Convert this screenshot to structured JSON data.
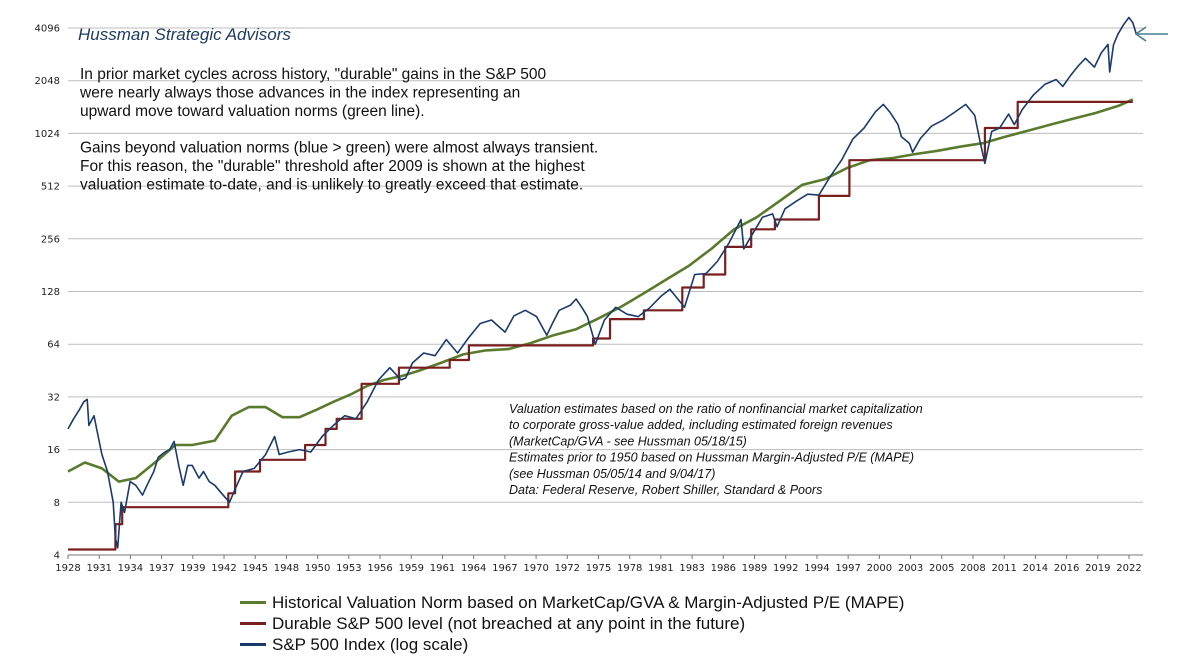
{
  "chart_data": {
    "type": "line",
    "title": "Hussman Strategic Advisors",
    "annotation_paragraphs": [
      [
        "In prior market cycles across history, \"durable\" gains in the S&P 500",
        "were nearly always those advances in the index representing an",
        "upward move toward valuation norms (green line)."
      ],
      [
        "Gains beyond valuation norms (blue > green) were almost always transient.",
        "For this reason, the \"durable\" threshold after 2009 is shown at the highest",
        "valuation estimate to-date, and is unlikely to greatly exceed that estimate."
      ]
    ],
    "source_note": [
      "Valuation estimates based on the ratio of nonfinancial  market capitalization",
      "to corporate gross-value added, including estimated foreign revenues",
      "(MarketCap/GVA - see Hussman 05/18/15)",
      "Estimates prior to 1950 based on Hussman Margin-Adjusted P/E (MAPE)",
      "(see Hussman 05/05/14 and 9/04/17)",
      "Data: Federal Reserve, Robert Shiller, Standard & Poors"
    ],
    "y_scale": "log2",
    "ylim": [
      4,
      4096
    ],
    "y_ticks": [
      4,
      8,
      16,
      32,
      64,
      128,
      256,
      512,
      1024,
      2048,
      4096
    ],
    "xlim": [
      1928,
      2023.2
    ],
    "x_tick_labels": [
      "1928",
      "1931",
      "1934",
      "1937",
      "1939",
      "1942",
      "1945",
      "1948",
      "1950",
      "1953",
      "1956",
      "1959",
      "1961",
      "1964",
      "1967",
      "1970",
      "1972",
      "1975",
      "1978",
      "1981",
      "1983",
      "1986",
      "1989",
      "1992",
      "1994",
      "1997",
      "2000",
      "2003",
      "2005",
      "2008",
      "2011",
      "2014",
      "2016",
      "2019",
      "2022"
    ],
    "grid": "horizontal",
    "legend_position": "bottom",
    "series": [
      {
        "name": "Historical Valuation Norm based on MarketCap/GVA & Margin-Adjusted P/E (MAPE)",
        "color": "#5a7a2e",
        "points": [
          [
            1928,
            12
          ],
          [
            1929.5,
            13.5
          ],
          [
            1931,
            12.5
          ],
          [
            1932.5,
            10.5
          ],
          [
            1934,
            11
          ],
          [
            1936,
            14
          ],
          [
            1937.5,
            17
          ],
          [
            1939,
            17
          ],
          [
            1941,
            18
          ],
          [
            1942.5,
            25
          ],
          [
            1944,
            28
          ],
          [
            1945.5,
            28
          ],
          [
            1947,
            24.5
          ],
          [
            1948.5,
            24.5
          ],
          [
            1950,
            27
          ],
          [
            1951.5,
            30
          ],
          [
            1953,
            33
          ],
          [
            1954.5,
            37
          ],
          [
            1956,
            40
          ],
          [
            1957.5,
            42
          ],
          [
            1959,
            45
          ],
          [
            1961,
            50
          ],
          [
            1963,
            56
          ],
          [
            1965,
            59
          ],
          [
            1967,
            60
          ],
          [
            1969,
            65
          ],
          [
            1971,
            72
          ],
          [
            1973,
            78
          ],
          [
            1975,
            90
          ],
          [
            1977,
            105
          ],
          [
            1979,
            125
          ],
          [
            1981,
            150
          ],
          [
            1983,
            180
          ],
          [
            1985,
            225
          ],
          [
            1987,
            290
          ],
          [
            1989,
            340
          ],
          [
            1991,
            420
          ],
          [
            1993,
            520
          ],
          [
            1995,
            560
          ],
          [
            1997,
            650
          ],
          [
            1999,
            720
          ],
          [
            2001,
            740
          ],
          [
            2003,
            780
          ],
          [
            2005,
            815
          ],
          [
            2007,
            860
          ],
          [
            2009,
            900
          ],
          [
            2011,
            980
          ],
          [
            2013,
            1060
          ],
          [
            2015,
            1150
          ],
          [
            2017,
            1240
          ],
          [
            2019,
            1340
          ],
          [
            2021,
            1470
          ],
          [
            2022.3,
            1600
          ]
        ]
      },
      {
        "name": "Durable S&P 500 level (not breached at any point in the future)",
        "color": "#7a1f1f",
        "points": [
          [
            1928,
            4.3
          ],
          [
            1932.2,
            4.3
          ],
          [
            1932.2,
            6
          ],
          [
            1932.8,
            6
          ],
          [
            1932.8,
            7.5
          ],
          [
            1942.2,
            7.5
          ],
          [
            1942.2,
            9
          ],
          [
            1942.8,
            9
          ],
          [
            1942.8,
            12
          ],
          [
            1945,
            12
          ],
          [
            1945,
            14
          ],
          [
            1949,
            14
          ],
          [
            1949,
            17
          ],
          [
            1950.8,
            17
          ],
          [
            1950.8,
            21
          ],
          [
            1951.8,
            21
          ],
          [
            1951.8,
            24
          ],
          [
            1954,
            24
          ],
          [
            1954,
            38
          ],
          [
            1957.3,
            38
          ],
          [
            1957.3,
            47
          ],
          [
            1961.8,
            47
          ],
          [
            1961.8,
            52
          ],
          [
            1963.5,
            52
          ],
          [
            1963.5,
            63
          ],
          [
            1974.5,
            63
          ],
          [
            1974.5,
            69
          ],
          [
            1976,
            69
          ],
          [
            1976,
            89
          ],
          [
            1979,
            89
          ],
          [
            1979,
            100
          ],
          [
            1982.4,
            100
          ],
          [
            1982.4,
            135
          ],
          [
            1984.3,
            135
          ],
          [
            1984.3,
            160
          ],
          [
            1986.2,
            160
          ],
          [
            1986.2,
            230
          ],
          [
            1988.5,
            230
          ],
          [
            1988.5,
            290
          ],
          [
            1990.6,
            290
          ],
          [
            1990.6,
            330
          ],
          [
            1994.5,
            330
          ],
          [
            1994.5,
            450
          ],
          [
            1997.2,
            450
          ],
          [
            1997.2,
            720
          ],
          [
            2009.2,
            720
          ],
          [
            2009.2,
            1100
          ],
          [
            2012.1,
            1100
          ],
          [
            2012.1,
            1550
          ],
          [
            2022.3,
            1550
          ]
        ]
      },
      {
        "name": "S&P 500 Index (log scale)",
        "color": "#1a3a6b",
        "points": [
          [
            1928,
            21
          ],
          [
            1928.5,
            24
          ],
          [
            1929,
            27
          ],
          [
            1929.4,
            30
          ],
          [
            1929.7,
            31
          ],
          [
            1929.85,
            22
          ],
          [
            1930.3,
            25
          ],
          [
            1930.6,
            20
          ],
          [
            1931,
            15
          ],
          [
            1931.5,
            12
          ],
          [
            1932,
            8
          ],
          [
            1932.2,
            5
          ],
          [
            1932.4,
            4.4
          ],
          [
            1932.7,
            8
          ],
          [
            1933,
            7
          ],
          [
            1933.5,
            10.5
          ],
          [
            1934,
            10
          ],
          [
            1934.6,
            8.8
          ],
          [
            1935,
            10
          ],
          [
            1935.6,
            12
          ],
          [
            1936,
            14.5
          ],
          [
            1936.6,
            15.5
          ],
          [
            1937,
            16
          ],
          [
            1937.4,
            17.8
          ],
          [
            1937.8,
            13
          ],
          [
            1938.2,
            10
          ],
          [
            1938.6,
            13
          ],
          [
            1939,
            13
          ],
          [
            1939.6,
            11
          ],
          [
            1940,
            12
          ],
          [
            1940.5,
            10.5
          ],
          [
            1941,
            10
          ],
          [
            1941.6,
            9
          ],
          [
            1942.3,
            8
          ],
          [
            1942.8,
            9.5
          ],
          [
            1943.5,
            12
          ],
          [
            1944.5,
            12.5
          ],
          [
            1945.5,
            15
          ],
          [
            1946.3,
            19
          ],
          [
            1946.7,
            15
          ],
          [
            1947.5,
            15.5
          ],
          [
            1948.5,
            16
          ],
          [
            1949.5,
            15.5
          ],
          [
            1950.5,
            19
          ],
          [
            1951.5,
            22
          ],
          [
            1952.5,
            25
          ],
          [
            1953.5,
            24
          ],
          [
            1954.5,
            30
          ],
          [
            1955.5,
            40
          ],
          [
            1956.5,
            47
          ],
          [
            1957.5,
            40
          ],
          [
            1957.9,
            41
          ],
          [
            1958.5,
            50
          ],
          [
            1959.5,
            57
          ],
          [
            1960.5,
            55
          ],
          [
            1961.5,
            68
          ],
          [
            1962.5,
            57
          ],
          [
            1963.5,
            70
          ],
          [
            1964.5,
            84
          ],
          [
            1965.5,
            88
          ],
          [
            1966.7,
            75
          ],
          [
            1967.5,
            93
          ],
          [
            1968.5,
            100
          ],
          [
            1969.5,
            92
          ],
          [
            1970.4,
            72
          ],
          [
            1970.9,
            84
          ],
          [
            1971.5,
            100
          ],
          [
            1972.5,
            107
          ],
          [
            1973,
            116
          ],
          [
            1973.5,
            104
          ],
          [
            1974,
            92
          ],
          [
            1974.7,
            64
          ],
          [
            1975.5,
            88
          ],
          [
            1976.5,
            104
          ],
          [
            1977.5,
            95
          ],
          [
            1978.5,
            92
          ],
          [
            1979.5,
            103
          ],
          [
            1980.5,
            120
          ],
          [
            1981.3,
            132
          ],
          [
            1982.6,
            104
          ],
          [
            1983.5,
            160
          ],
          [
            1984.5,
            162
          ],
          [
            1985.5,
            190
          ],
          [
            1986.5,
            240
          ],
          [
            1987.6,
            330
          ],
          [
            1987.85,
            224
          ],
          [
            1988.5,
            265
          ],
          [
            1989.5,
            340
          ],
          [
            1990.4,
            355
          ],
          [
            1990.8,
            300
          ],
          [
            1991.5,
            380
          ],
          [
            1992.5,
            420
          ],
          [
            1993.5,
            460
          ],
          [
            1994.5,
            455
          ],
          [
            1995.5,
            580
          ],
          [
            1996.5,
            720
          ],
          [
            1997.5,
            950
          ],
          [
            1998.5,
            1100
          ],
          [
            1999.5,
            1360
          ],
          [
            2000.2,
            1500
          ],
          [
            2000.8,
            1350
          ],
          [
            2001.5,
            1150
          ],
          [
            2001.8,
            980
          ],
          [
            2002.5,
            900
          ],
          [
            2002.8,
            800
          ],
          [
            2003.5,
            960
          ],
          [
            2004.5,
            1130
          ],
          [
            2005.5,
            1220
          ],
          [
            2006.5,
            1350
          ],
          [
            2007.5,
            1500
          ],
          [
            2008.3,
            1300
          ],
          [
            2008.8,
            900
          ],
          [
            2009.2,
            690
          ],
          [
            2009.8,
            1050
          ],
          [
            2010.5,
            1100
          ],
          [
            2011.3,
            1320
          ],
          [
            2011.8,
            1150
          ],
          [
            2012.5,
            1400
          ],
          [
            2013.5,
            1700
          ],
          [
            2014.5,
            1950
          ],
          [
            2015.5,
            2080
          ],
          [
            2016.1,
            1900
          ],
          [
            2016.8,
            2200
          ],
          [
            2017.5,
            2500
          ],
          [
            2018.1,
            2750
          ],
          [
            2018.9,
            2450
          ],
          [
            2019.5,
            2950
          ],
          [
            2020.1,
            3300
          ],
          [
            2020.25,
            2300
          ],
          [
            2020.6,
            3300
          ],
          [
            2021,
            3800
          ],
          [
            2021.5,
            4300
          ],
          [
            2021.95,
            4700
          ],
          [
            2022.3,
            4400
          ],
          [
            2022.6,
            3800
          ]
        ]
      }
    ]
  }
}
